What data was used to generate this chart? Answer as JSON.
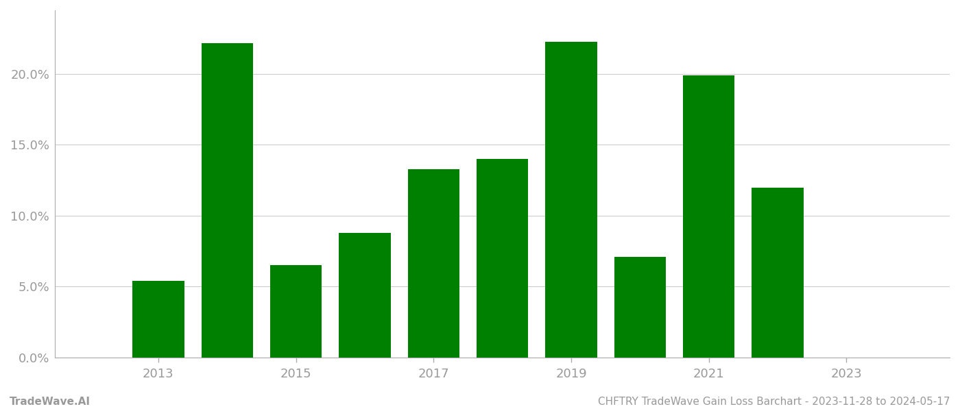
{
  "years": [
    2013,
    2014,
    2015,
    2016,
    2017,
    2018,
    2019,
    2020,
    2021,
    2022,
    2023
  ],
  "values": [
    0.054,
    0.222,
    0.065,
    0.088,
    0.133,
    0.14,
    0.223,
    0.071,
    0.199,
    0.12,
    0.0
  ],
  "bar_color": "#008000",
  "background_color": "#ffffff",
  "grid_color": "#cccccc",
  "axis_spine_color": "#aaaaaa",
  "tick_label_color": "#999999",
  "ylim": [
    0.0,
    0.245
  ],
  "yticks": [
    0.0,
    0.05,
    0.1,
    0.15,
    0.2
  ],
  "ytick_labels": [
    "0.0%",
    "5.0%",
    "10.0%",
    "15.0%",
    "20.0%"
  ],
  "xtick_years": [
    2013,
    2015,
    2017,
    2019,
    2021,
    2023
  ],
  "xlim_left": 2011.5,
  "xlim_right": 2024.5,
  "footer_left": "TradeWave.AI",
  "footer_right": "CHFTRY TradeWave Gain Loss Barchart - 2023-11-28 to 2024-05-17",
  "footer_color": "#999999",
  "footer_fontsize": 11,
  "bar_width": 0.75
}
